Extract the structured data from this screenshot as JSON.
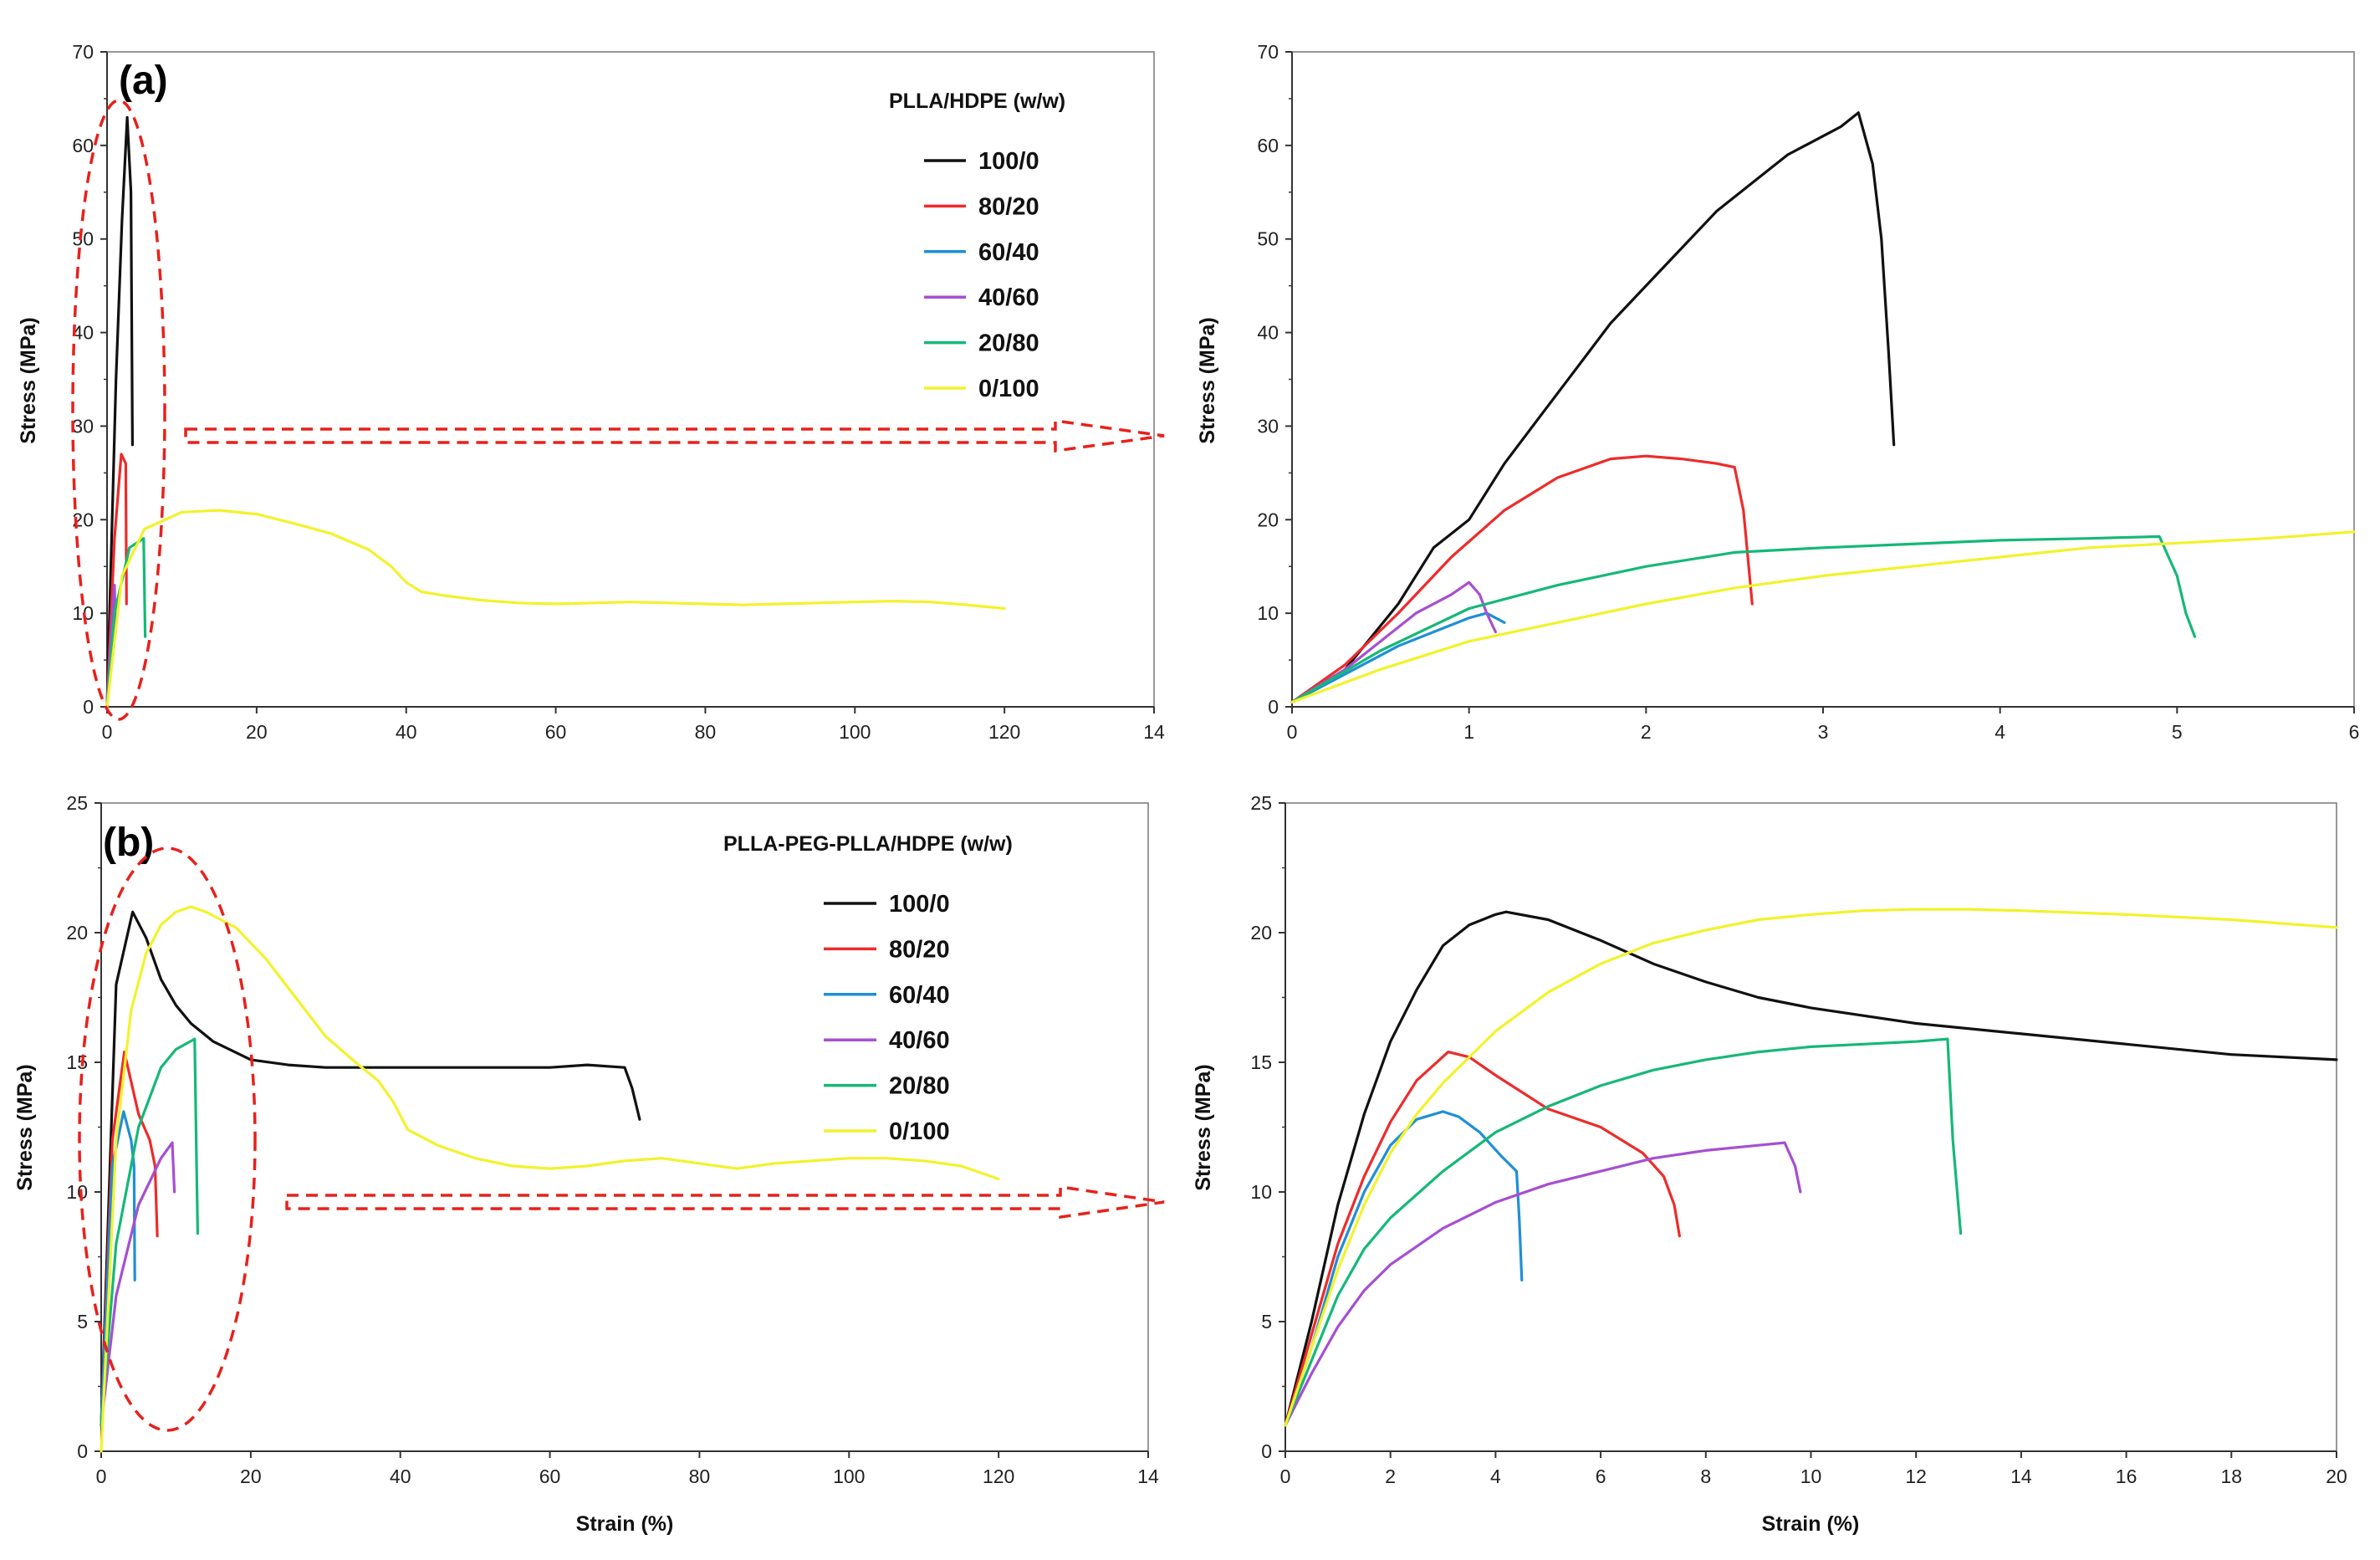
{
  "figure": {
    "colors": {
      "100/0": "#111111",
      "80/20": "#ee2b2b",
      "60/40": "#1f8fd6",
      "40/60": "#a64fd1",
      "20/80": "#15b877",
      "0/100": "#f2f22c",
      "highlight": "#e8201c"
    }
  },
  "chart_data": [
    {
      "id": "a-full",
      "type": "line",
      "panel_label": "(a)",
      "legend_title": "PLLA/HDPE (w/w)",
      "legend_position": "top-right",
      "xlabel": "",
      "ylabel": "Stress (MPa)",
      "xlim": [
        0,
        140
      ],
      "ylim": [
        0,
        70
      ],
      "x_ticks": [
        "0",
        "20",
        "40",
        "60",
        "80",
        "100",
        "120",
        "14"
      ],
      "y_ticks": [
        "0",
        "10",
        "20",
        "30",
        "40",
        "50",
        "60",
        "70"
      ],
      "series": [
        {
          "name": "100/0",
          "x": [
            0,
            1.2,
            2.0,
            2.7,
            3.2,
            3.4
          ],
          "y": [
            0,
            35,
            52,
            63,
            55,
            28
          ]
        },
        {
          "name": "80/20",
          "x": [
            0,
            1.0,
            1.9,
            2.5,
            2.6
          ],
          "y": [
            0,
            18,
            27,
            26,
            11
          ]
        },
        {
          "name": "60/40",
          "x": [
            0,
            0.6,
            1.0,
            1.2
          ],
          "y": [
            0,
            7,
            10,
            9
          ]
        },
        {
          "name": "40/60",
          "x": [
            0,
            0.8,
            1.0,
            1.15
          ],
          "y": [
            0,
            11,
            13,
            8
          ]
        },
        {
          "name": "20/80",
          "x": [
            0,
            1.0,
            3.0,
            4.9,
            5.1
          ],
          "y": [
            0,
            10,
            17,
            18,
            7.5
          ]
        },
        {
          "name": "0/100",
          "x": [
            0,
            2,
            5,
            10,
            15,
            20,
            25,
            30,
            35,
            38,
            40,
            42,
            45,
            50,
            55,
            60,
            65,
            70,
            75,
            80,
            85,
            90,
            95,
            100,
            105,
            110,
            115,
            120
          ],
          "y": [
            0,
            14,
            19,
            20.8,
            21,
            20.6,
            19.6,
            18.5,
            16.8,
            15,
            13.3,
            12.3,
            11.9,
            11.4,
            11.1,
            11,
            11.1,
            11.2,
            11.1,
            11,
            10.9,
            11,
            11.1,
            11.2,
            11.3,
            11.2,
            10.9,
            10.5
          ]
        }
      ]
    },
    {
      "id": "a-zoom",
      "type": "line",
      "xlabel": "",
      "ylabel": "Stress (MPa)",
      "xlim": [
        0,
        6
      ],
      "ylim": [
        0,
        70
      ],
      "x_ticks": [
        "0",
        "1",
        "2",
        "3",
        "4",
        "5",
        "6"
      ],
      "y_ticks": [
        "0",
        "10",
        "20",
        "30",
        "40",
        "50",
        "60",
        "70"
      ],
      "series": [
        {
          "name": "100/0",
          "x": [
            0,
            0.3,
            0.6,
            0.8,
            1.0,
            1.2,
            1.4,
            1.6,
            1.8,
            2.0,
            2.2,
            2.4,
            2.6,
            2.8,
            3.0,
            3.1,
            3.2,
            3.28,
            3.33,
            3.37,
            3.4
          ],
          "y": [
            0.5,
            4,
            11,
            17,
            20,
            26,
            31,
            36,
            41,
            45,
            49,
            53,
            56,
            59,
            61,
            62,
            63.5,
            58,
            50,
            38,
            28
          ]
        },
        {
          "name": "80/20",
          "x": [
            0,
            0.3,
            0.6,
            0.9,
            1.2,
            1.5,
            1.8,
            2.0,
            2.2,
            2.4,
            2.5,
            2.55,
            2.58,
            2.6
          ],
          "y": [
            0.5,
            4.5,
            10,
            16,
            21,
            24.5,
            26.5,
            26.8,
            26.5,
            26,
            25.6,
            21,
            15,
            11
          ]
        },
        {
          "name": "60/40",
          "x": [
            0,
            0.3,
            0.6,
            0.8,
            1.0,
            1.1,
            1.2
          ],
          "y": [
            0.5,
            3.5,
            6.5,
            8,
            9.5,
            10,
            9
          ]
        },
        {
          "name": "40/60",
          "x": [
            0,
            0.3,
            0.5,
            0.7,
            0.9,
            1.0,
            1.06,
            1.1,
            1.15
          ],
          "y": [
            0.5,
            4,
            7,
            10,
            12,
            13.3,
            12,
            10,
            8
          ]
        },
        {
          "name": "20/80",
          "x": [
            0,
            0.5,
            1.0,
            1.5,
            2.0,
            2.5,
            3.0,
            3.5,
            4.0,
            4.5,
            4.9,
            5.0,
            5.05,
            5.1
          ],
          "y": [
            0.5,
            6,
            10.5,
            13,
            15,
            16.5,
            17,
            17.4,
            17.8,
            18,
            18.2,
            14,
            10,
            7.5
          ]
        },
        {
          "name": "0/100",
          "x": [
            0,
            0.5,
            1.0,
            1.5,
            2.0,
            2.5,
            3.0,
            3.5,
            4.0,
            4.5,
            5.0,
            5.5,
            6.0
          ],
          "y": [
            0.5,
            4,
            7,
            9,
            11,
            12.7,
            14,
            15,
            16,
            17,
            17.5,
            18,
            18.7
          ]
        }
      ]
    },
    {
      "id": "b-full",
      "type": "line",
      "panel_label": "(b)",
      "legend_title": "PLLA-PEG-PLLA/HDPE (w/w)",
      "legend_position": "top-right",
      "xlabel": "Strain (%)",
      "ylabel": "Stress (MPa)",
      "xlim": [
        0,
        140
      ],
      "ylim": [
        0,
        25
      ],
      "x_ticks": [
        "0",
        "20",
        "40",
        "60",
        "80",
        "100",
        "120",
        "14"
      ],
      "y_ticks": [
        "0",
        "5",
        "10",
        "15",
        "20",
        "25"
      ],
      "series": [
        {
          "name": "100/0",
          "x": [
            0,
            2,
            4.2,
            6,
            8,
            10,
            12,
            15,
            20,
            25,
            30,
            40,
            50,
            60,
            65,
            70,
            71,
            72
          ],
          "y": [
            1,
            18,
            20.8,
            19.8,
            18.2,
            17.2,
            16.5,
            15.8,
            15.1,
            14.9,
            14.8,
            14.8,
            14.8,
            14.8,
            14.9,
            14.8,
            14,
            12.8
          ]
        },
        {
          "name": "80/20",
          "x": [
            0,
            1.5,
            3.1,
            5,
            6.5,
            7.2,
            7.5
          ],
          "y": [
            1,
            12,
            15.4,
            13,
            12,
            11,
            8.3
          ]
        },
        {
          "name": "60/40",
          "x": [
            0,
            1.5,
            3,
            4.0,
            4.4,
            4.5
          ],
          "y": [
            1,
            11,
            13.1,
            12,
            11,
            6.6
          ]
        },
        {
          "name": "40/60",
          "x": [
            0,
            2,
            5,
            8,
            9.5,
            9.8
          ],
          "y": [
            1,
            6,
            9.5,
            11.3,
            11.9,
            10
          ]
        },
        {
          "name": "20/80",
          "x": [
            0,
            2,
            5,
            8,
            10,
            12.5,
            12.7,
            12.9
          ],
          "y": [
            1,
            8,
            12.5,
            14.8,
            15.5,
            15.9,
            12,
            8.4
          ]
        },
        {
          "name": "0/100",
          "x": [
            0,
            2,
            4,
            6,
            8,
            10,
            12,
            14,
            18,
            22,
            26,
            30,
            34,
            37,
            39,
            41,
            45,
            50,
            55,
            60,
            65,
            70,
            75,
            80,
            85,
            90,
            95,
            100,
            105,
            110,
            115,
            120
          ],
          "y": [
            0,
            12,
            17,
            19.2,
            20.3,
            20.8,
            21,
            20.8,
            20.2,
            19,
            17.5,
            16,
            15,
            14.3,
            13.5,
            12.4,
            11.8,
            11.3,
            11,
            10.9,
            11,
            11.2,
            11.3,
            11.1,
            10.9,
            11.1,
            11.2,
            11.3,
            11.3,
            11.2,
            11,
            10.5
          ]
        }
      ]
    },
    {
      "id": "b-zoom",
      "type": "line",
      "xlabel": "Strain (%)",
      "ylabel": "Stress (MPa)",
      "xlim": [
        0,
        20
      ],
      "ylim": [
        0,
        25
      ],
      "x_ticks": [
        "0",
        "2",
        "4",
        "6",
        "8",
        "10",
        "12",
        "14",
        "16",
        "18",
        "20"
      ],
      "y_ticks": [
        "0",
        "5",
        "10",
        "15",
        "20",
        "25"
      ],
      "series": [
        {
          "name": "100/0",
          "x": [
            0,
            0.5,
            1.0,
            1.5,
            2.0,
            2.5,
            3.0,
            3.5,
            4.0,
            4.2,
            5,
            6,
            7,
            8,
            9,
            10,
            12,
            14,
            16,
            18,
            20
          ],
          "y": [
            1,
            5,
            9.5,
            13,
            15.8,
            17.8,
            19.5,
            20.3,
            20.7,
            20.8,
            20.5,
            19.7,
            18.8,
            18.1,
            17.5,
            17.1,
            16.5,
            16.1,
            15.7,
            15.3,
            15.1
          ]
        },
        {
          "name": "80/20",
          "x": [
            0,
            0.5,
            1.0,
            1.5,
            2.0,
            2.5,
            3.1,
            3.5,
            4.0,
            5.0,
            6.0,
            6.8,
            7.2,
            7.4,
            7.5
          ],
          "y": [
            1,
            4.5,
            8,
            10.6,
            12.7,
            14.3,
            15.4,
            15.2,
            14.5,
            13.2,
            12.5,
            11.5,
            10.6,
            9.5,
            8.3
          ]
        },
        {
          "name": "60/40",
          "x": [
            0,
            0.5,
            1.0,
            1.5,
            2.0,
            2.5,
            3.0,
            3.3,
            3.7,
            4.1,
            4.4,
            4.45,
            4.5
          ],
          "y": [
            1,
            4,
            7.5,
            10,
            11.8,
            12.8,
            13.1,
            12.9,
            12.3,
            11.4,
            10.8,
            9,
            6.6
          ]
        },
        {
          "name": "40/60",
          "x": [
            0,
            0.5,
            1.0,
            1.5,
            2.0,
            3.0,
            4.0,
            5.0,
            6.0,
            7.0,
            8.0,
            9.0,
            9.5,
            9.7,
            9.8
          ],
          "y": [
            1,
            3,
            4.8,
            6.2,
            7.2,
            8.6,
            9.6,
            10.3,
            10.8,
            11.3,
            11.6,
            11.8,
            11.9,
            11,
            10
          ]
        },
        {
          "name": "20/80",
          "x": [
            0,
            0.5,
            1.0,
            1.5,
            2.0,
            3.0,
            4.0,
            5.0,
            6.0,
            7.0,
            8.0,
            9.0,
            10.0,
            11.0,
            12.0,
            12.6,
            12.7,
            12.85
          ],
          "y": [
            1,
            3.5,
            6,
            7.8,
            9,
            10.8,
            12.3,
            13.3,
            14.1,
            14.7,
            15.1,
            15.4,
            15.6,
            15.7,
            15.8,
            15.9,
            12,
            8.4
          ]
        },
        {
          "name": "0/100",
          "x": [
            0,
            0.5,
            1.0,
            1.5,
            2.0,
            2.5,
            3.0,
            4.0,
            5.0,
            6.0,
            7.0,
            8.0,
            9.0,
            10,
            11,
            12,
            13,
            14,
            16,
            18,
            20
          ],
          "y": [
            1,
            4,
            7,
            9.5,
            11.5,
            13,
            14.2,
            16.2,
            17.7,
            18.8,
            19.6,
            20.1,
            20.5,
            20.7,
            20.85,
            20.9,
            20.9,
            20.85,
            20.7,
            20.5,
            20.2
          ]
        }
      ]
    }
  ]
}
